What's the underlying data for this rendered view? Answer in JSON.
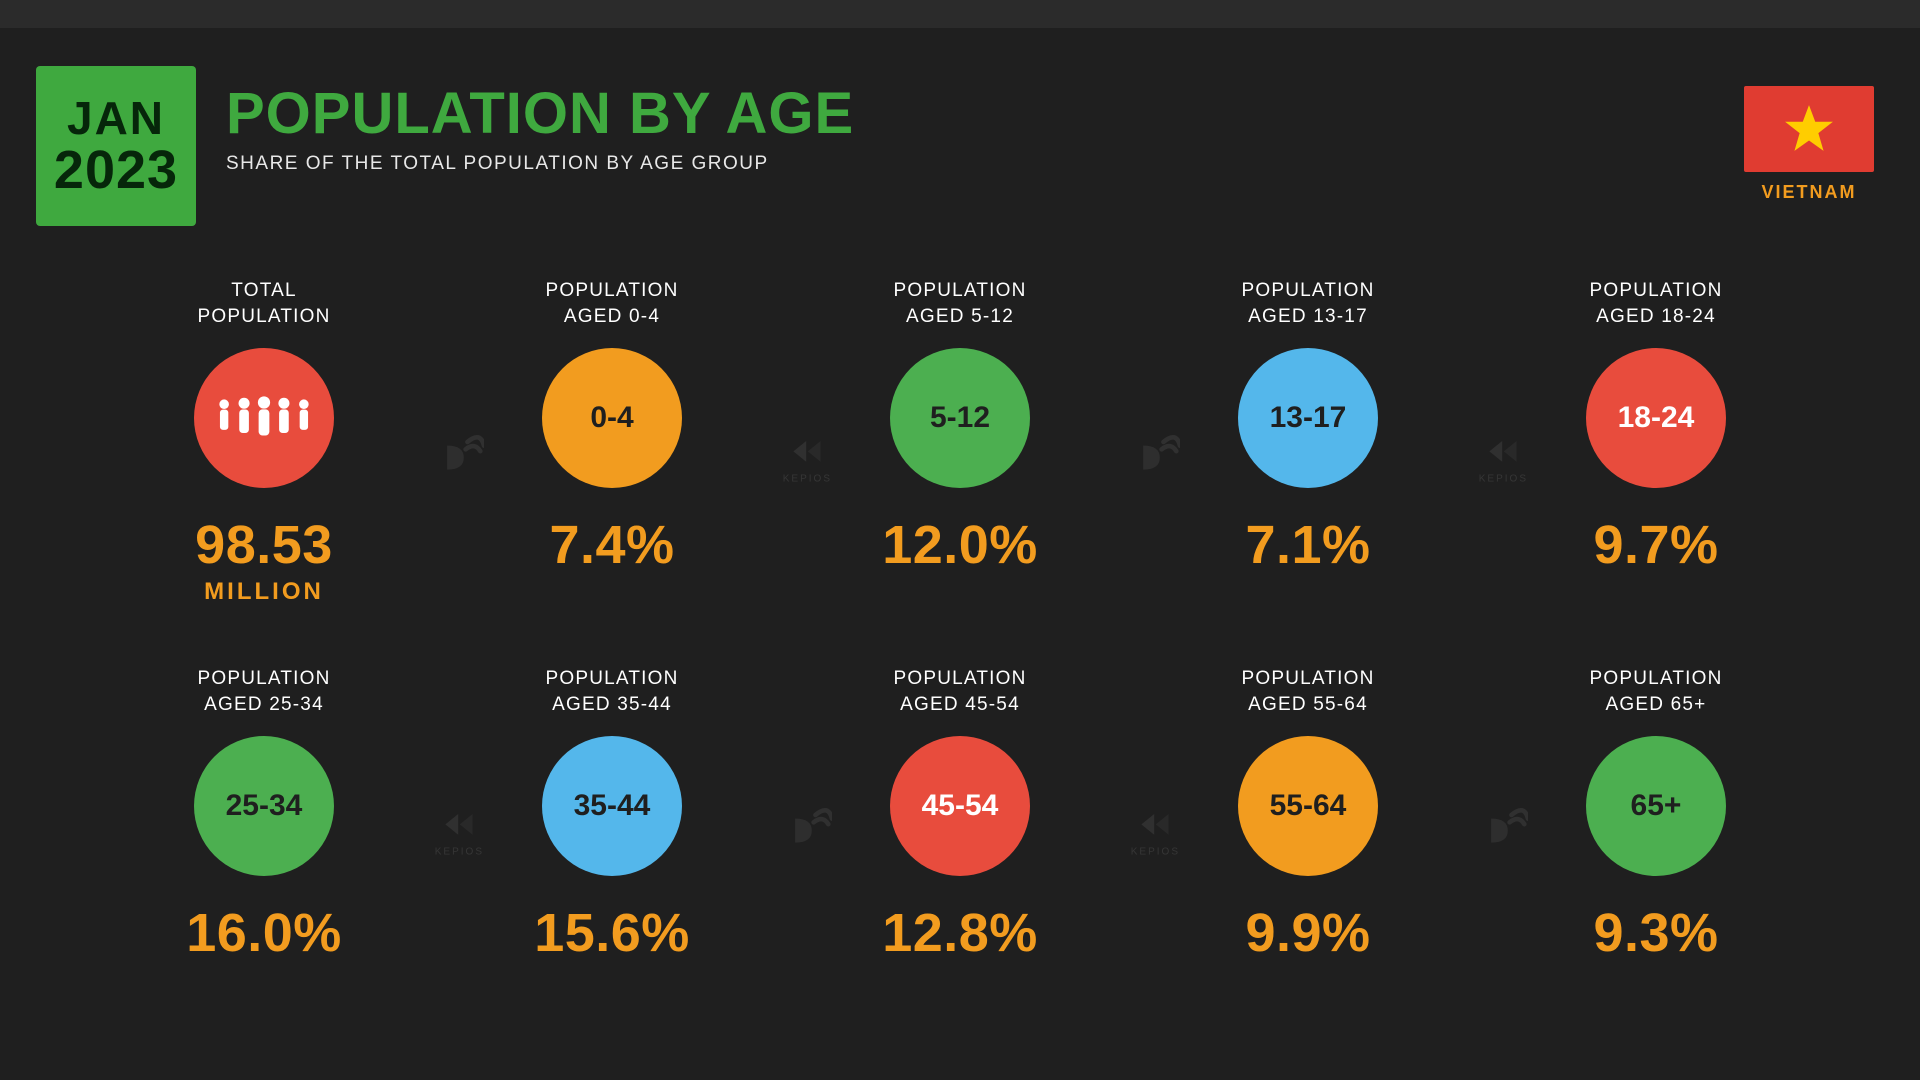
{
  "date_badge": {
    "month": "JAN",
    "year": "2023"
  },
  "title": "POPULATION BY AGE",
  "subtitle": "SHARE OF THE TOTAL POPULATION BY AGE GROUP",
  "country": {
    "name": "VIETNAM",
    "flag_bg": "#e03c31",
    "flag_star": "#ffcd00"
  },
  "palette": {
    "background": "#1f1f1f",
    "accent_green": "#3fa93f",
    "accent_orange": "#f29c1f",
    "text": "#ffffff"
  },
  "watermarks": [
    "D",
    "KEPIOS",
    "D",
    "KEPIOS",
    "KEPIOS",
    "D",
    "KEPIOS",
    "D"
  ],
  "cells": [
    {
      "label": "TOTAL\nPOPULATION",
      "circle_color": "#e84c3d",
      "circle_content_type": "icon",
      "circle_text": "",
      "circle_text_light": true,
      "value": "98.53",
      "unit": "MILLION"
    },
    {
      "label": "POPULATION\nAGED 0-4",
      "circle_color": "#f29c1f",
      "circle_content_type": "text",
      "circle_text": "0-4",
      "circle_text_light": false,
      "value": "7.4%",
      "unit": ""
    },
    {
      "label": "POPULATION\nAGED 5-12",
      "circle_color": "#4caf50",
      "circle_content_type": "text",
      "circle_text": "5-12",
      "circle_text_light": false,
      "value": "12.0%",
      "unit": ""
    },
    {
      "label": "POPULATION\nAGED 13-17",
      "circle_color": "#54b7eb",
      "circle_content_type": "text",
      "circle_text": "13-17",
      "circle_text_light": false,
      "value": "7.1%",
      "unit": ""
    },
    {
      "label": "POPULATION\nAGED 18-24",
      "circle_color": "#e84c3d",
      "circle_content_type": "text",
      "circle_text": "18-24",
      "circle_text_light": true,
      "value": "9.7%",
      "unit": ""
    },
    {
      "label": "POPULATION\nAGED 25-34",
      "circle_color": "#4caf50",
      "circle_content_type": "text",
      "circle_text": "25-34",
      "circle_text_light": false,
      "value": "16.0%",
      "unit": ""
    },
    {
      "label": "POPULATION\nAGED 35-44",
      "circle_color": "#54b7eb",
      "circle_content_type": "text",
      "circle_text": "35-44",
      "circle_text_light": false,
      "value": "15.6%",
      "unit": ""
    },
    {
      "label": "POPULATION\nAGED 45-54",
      "circle_color": "#e84c3d",
      "circle_content_type": "text",
      "circle_text": "45-54",
      "circle_text_light": true,
      "value": "12.8%",
      "unit": ""
    },
    {
      "label": "POPULATION\nAGED 55-64",
      "circle_color": "#f29c1f",
      "circle_content_type": "text",
      "circle_text": "55-64",
      "circle_text_light": false,
      "value": "9.9%",
      "unit": ""
    },
    {
      "label": "POPULATION\nAGED 65+",
      "circle_color": "#4caf50",
      "circle_content_type": "text",
      "circle_text": "65+",
      "circle_text_light": false,
      "value": "9.3%",
      "unit": ""
    }
  ]
}
